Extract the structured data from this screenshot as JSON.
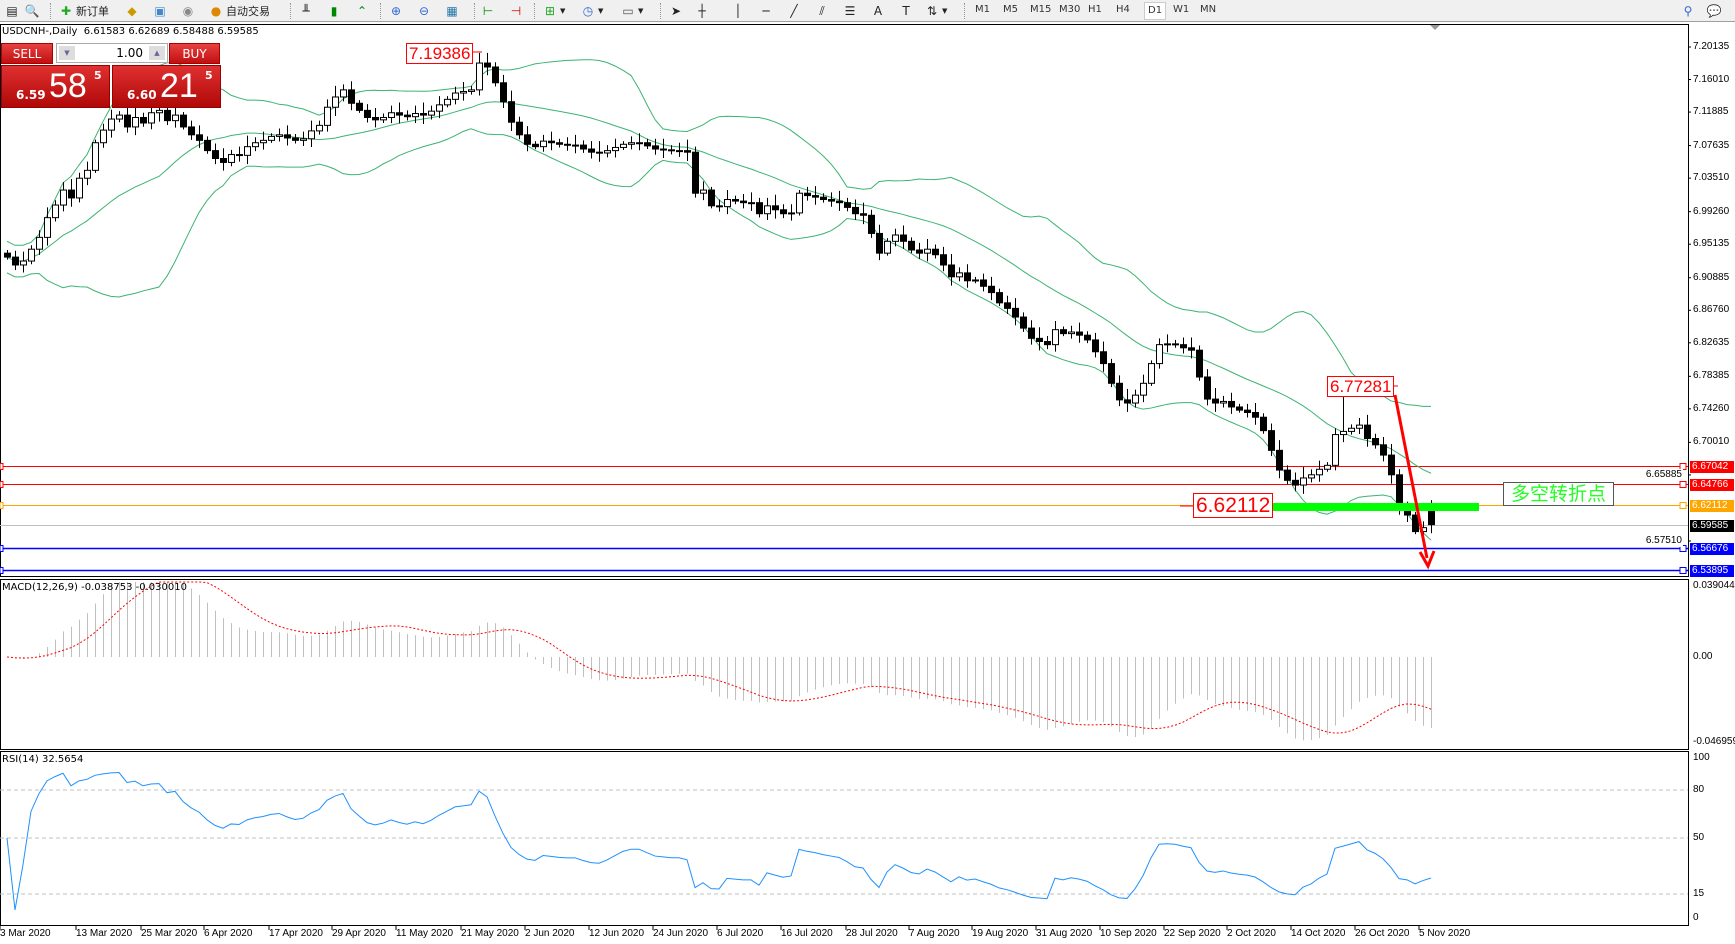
{
  "toolbar": {
    "new_order_label": "新订单",
    "autotrading_label": "自动交易",
    "icons": [
      "new-chart-icon",
      "profiles-icon",
      "new-order-icon",
      "history-icon",
      "terminal-icon",
      "signals-icon",
      "autotrading-icon",
      "bar-chart-icon",
      "candlestick-icon",
      "line-chart-icon",
      "zoom-in-icon",
      "zoom-out-icon",
      "tile-windows-icon",
      "chart-shift-icon",
      "autoscroll-icon",
      "indicators-icon",
      "periods-icon",
      "templates-icon",
      "cursor-icon",
      "crosshair-icon",
      "vertical-line-icon",
      "horizontal-line-icon",
      "trendline-icon",
      "fibonacci-icon",
      "channel-icon",
      "text-icon",
      "text-label-icon",
      "arrows-icon",
      "search-icon",
      "chat-icon"
    ],
    "timeframes": [
      "M1",
      "M5",
      "M15",
      "M30",
      "H1",
      "H4",
      "D1",
      "W1",
      "MN"
    ],
    "active_timeframe": "D1"
  },
  "chart": {
    "title": "USDCNH-,Daily  6.61583 6.62689 6.58488 6.59585",
    "symbol": "USDCNH-",
    "period": "Daily"
  },
  "one_click": {
    "sell_label": "SELL",
    "buy_label": "BUY",
    "lot": "1.00",
    "sell_small": "6.59",
    "sell_big": "58",
    "sell_sup": "5",
    "buy_small": "6.60",
    "buy_big": "21",
    "buy_sup": "5"
  },
  "annotations": {
    "high_label": "7.19386",
    "swing_high_label": "6.77281",
    "pivot_label": "6.62112",
    "pivot_text": "多空转折点"
  },
  "levels": [
    {
      "value": "6.67042",
      "color": "#ff0000"
    },
    {
      "value": "6.64766",
      "color": "#ff0000"
    },
    {
      "value": "6.62112",
      "color": "#ffa500"
    },
    {
      "value": "6.59585",
      "color": "#000000",
      "line": "#c0c0c0"
    },
    {
      "value": "6.56676",
      "color": "#0000ff"
    },
    {
      "value": "6.53895",
      "color": "#0000ff"
    }
  ],
  "price_axis": [
    "7.20135",
    "7.16010",
    "7.11885",
    "7.07635",
    "7.03510",
    "6.99260",
    "6.95135",
    "6.90885",
    "6.86760",
    "6.82635",
    "6.78385",
    "6.74260",
    "6.70010",
    "6.65885",
    "6.57510"
  ],
  "macd": {
    "title": "MACD(12,26,9) -0.038753 -0.030010",
    "axis": [
      "0.039044",
      "0.00",
      "-0.046959"
    ]
  },
  "rsi": {
    "title": "RSI(14) 32.5654",
    "axis": [
      "100",
      "80",
      "50",
      "15",
      "0"
    ]
  },
  "date_axis": [
    "3 Mar 2020",
    "13 Mar 2020",
    "25 Mar 2020",
    "6 Apr 2020",
    "17 Apr 2020",
    "29 Apr 2020",
    "11 May 2020",
    "21 May 2020",
    "2 Jun 2020",
    "12 Jun 2020",
    "24 Jun 2020",
    "6 Jul 2020",
    "16 Jul 2020",
    "28 Jul 2020",
    "7 Aug 2020",
    "19 Aug 2020",
    "31 Aug 2020",
    "10 Sep 2020",
    "22 Sep 2020",
    "2 Oct 2020",
    "14 Oct 2020",
    "26 Oct 2020",
    "5 Nov 2020"
  ],
  "colors": {
    "bollinger": "#3cb371",
    "macd_hist": "#c0c0c0",
    "macd_signal": "#ff0000",
    "rsi": "#1e90ff",
    "pivot_bar": "#00ff00",
    "arrow": "#ff0000"
  },
  "chart_data": {
    "type": "candlestick",
    "indicators": [
      "Bollinger Bands(20,2)",
      "MACD(12,26,9)",
      "RSI(14)"
    ],
    "ylim": [
      6.42,
      7.225
    ],
    "closes": [
      6.935,
      6.925,
      6.93,
      6.945,
      6.96,
      6.985,
      7.001,
      7.02,
      7.01,
      7.035,
      7.045,
      7.08,
      7.096,
      7.11,
      7.115,
      7.1,
      7.112,
      7.105,
      7.118,
      7.121,
      7.108,
      7.115,
      7.1,
      7.09,
      7.083,
      7.07,
      7.06,
      7.055,
      7.065,
      7.064,
      7.075,
      7.08,
      7.083,
      7.088,
      7.09,
      7.086,
      7.083,
      7.085,
      7.095,
      7.102,
      7.125,
      7.138,
      7.147,
      7.13,
      7.121,
      7.112,
      7.109,
      7.112,
      7.118,
      7.115,
      7.113,
      7.117,
      7.115,
      7.12,
      7.128,
      7.135,
      7.143,
      7.145,
      7.147,
      7.181,
      7.176,
      7.156,
      7.132,
      7.106,
      7.09,
      7.078,
      7.075,
      7.082,
      7.08,
      7.078,
      7.077,
      7.077,
      7.072,
      7.068,
      7.067,
      7.07,
      7.074,
      7.078,
      7.08,
      7.08,
      7.076,
      7.072,
      7.071,
      7.07,
      7.07,
      7.068,
      7.016,
      7.02,
      7.0,
      6.999,
      7.008,
      7.006,
      7.004,
      7.004,
      6.99,
      7.0,
      6.995,
      6.99,
      6.991,
      7.016,
      7.013,
      7.011,
      7.008,
      7.006,
      7.004,
      6.998,
      6.99,
      6.988,
      6.965,
      6.94,
      6.955,
      6.963,
      6.955,
      6.944,
      6.94,
      6.945,
      6.938,
      6.925,
      6.91,
      6.915,
      6.905,
      6.906,
      6.898,
      6.89,
      6.877,
      6.87,
      6.859,
      6.845,
      6.832,
      6.828,
      6.824,
      6.843,
      6.838,
      6.84,
      6.836,
      6.83,
      6.815,
      6.8,
      6.775,
      6.754,
      6.75,
      6.76,
      6.775,
      6.8,
      6.824,
      6.825,
      6.824,
      6.82,
      6.817,
      6.783,
      6.755,
      6.75,
      6.752,
      6.745,
      6.741,
      6.738,
      6.732,
      6.715,
      6.69,
      6.665,
      6.652,
      6.646,
      6.655,
      6.659,
      6.666,
      6.671,
      6.71,
      6.714,
      6.718,
      6.722,
      6.705,
      6.697,
      6.684,
      6.659,
      6.614,
      6.608,
      6.587,
      6.592,
      6.59585
    ],
    "last_bar": {
      "open": 6.61583,
      "high": 6.62689,
      "low": 6.58488,
      "close": 6.59585
    },
    "marked_high": 7.19386,
    "marked_swing_high": 6.77281
  }
}
